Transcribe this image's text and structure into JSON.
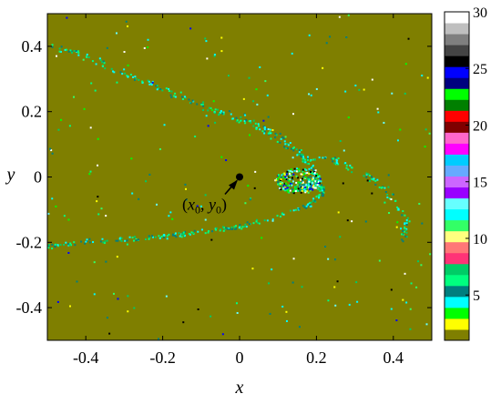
{
  "chart_data": {
    "type": "heatmap",
    "title": "",
    "xlabel": "x",
    "ylabel": "y",
    "xlim": [
      -0.5,
      0.5
    ],
    "ylim": [
      -0.5,
      0.5
    ],
    "x_ticks": [
      -0.4,
      -0.2,
      0,
      0.2,
      0.4
    ],
    "x_tick_labels": [
      "-0.4",
      "-0.2",
      "0",
      "0.2",
      "0.4"
    ],
    "y_ticks": [
      0.4,
      0.2,
      0,
      -0.2,
      -0.4
    ],
    "y_tick_labels": [
      "0.4",
      "0.2",
      "0",
      "-0.2",
      "-0.4"
    ],
    "background_color": "#7f7f00",
    "grid": false,
    "annotation": {
      "text": "(x0, y0)",
      "point": [
        0,
        0
      ],
      "label_parts": [
        {
          "t": "(",
          "k": "n"
        },
        {
          "t": "x",
          "k": "i"
        },
        {
          "t": "0",
          "k": "s"
        },
        {
          "t": ", ",
          "k": "n"
        },
        {
          "t": "y",
          "k": "i"
        },
        {
          "t": "0",
          "k": "s"
        },
        {
          "t": ")",
          "k": "n"
        }
      ]
    },
    "colorbar": {
      "range": [
        1,
        30
      ],
      "ticks": [
        30,
        25,
        20,
        15,
        10,
        5
      ],
      "tick_labels": [
        "30",
        "25",
        "20",
        "15",
        "10",
        "5"
      ],
      "colors": [
        "#7f7f00",
        "#ffff00",
        "#00ff00",
        "#00ffff",
        "#007f7f",
        "#00ff7f",
        "#00cc66",
        "#ff3377",
        "#ff7777",
        "#ffff7f",
        "#33ff66",
        "#00ffff",
        "#66ffff",
        "#9900ff",
        "#cc66ff",
        "#66aaff",
        "#00ccff",
        "#ff00ff",
        "#ff66cc",
        "#7f0000",
        "#ff0000",
        "#007f00",
        "#00ff00",
        "#00007f",
        "#0000ff",
        "#000000",
        "#444444",
        "#7f7f7f",
        "#bfbfbf",
        "#ffffff"
      ]
    },
    "structure": {
      "filament_upper": [
        [
          -0.5,
          0.41
        ],
        [
          -0.4,
          0.37
        ],
        [
          -0.3,
          0.32
        ],
        [
          -0.2,
          0.27
        ],
        [
          -0.1,
          0.22
        ],
        [
          0.0,
          0.18
        ],
        [
          0.06,
          0.15
        ],
        [
          0.1,
          0.12
        ],
        [
          0.15,
          0.08
        ],
        [
          0.18,
          0.04
        ],
        [
          0.19,
          0.0
        ],
        [
          0.17,
          -0.03
        ],
        [
          0.14,
          -0.03
        ]
      ],
      "filament_lower": [
        [
          -0.5,
          -0.21
        ],
        [
          -0.4,
          -0.195
        ],
        [
          -0.3,
          -0.19
        ],
        [
          -0.2,
          -0.18
        ],
        [
          -0.1,
          -0.165
        ],
        [
          0.0,
          -0.15
        ],
        [
          0.1,
          -0.12
        ],
        [
          0.18,
          -0.08
        ],
        [
          0.22,
          -0.04
        ],
        [
          0.2,
          -0.02
        ],
        [
          0.16,
          -0.03
        ]
      ],
      "filament_right": [
        [
          0.18,
          0.06
        ],
        [
          0.26,
          0.05
        ],
        [
          0.34,
          0.0
        ],
        [
          0.4,
          -0.06
        ],
        [
          0.43,
          -0.14
        ],
        [
          0.42,
          -0.2
        ]
      ],
      "dense_core": [
        0.15,
        -0.01
      ],
      "sample_colors": [
        "#00ffff",
        "#00cc66",
        "#007f7f",
        "#00ff7f",
        "#66ffff",
        "#ffffff",
        "#0000ff",
        "#000000",
        "#ffff00",
        "#00ff00",
        "#33ff66"
      ]
    }
  }
}
